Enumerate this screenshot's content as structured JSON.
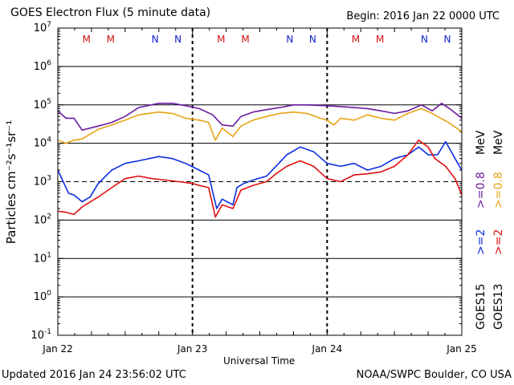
{
  "header": {
    "title": "GOES Electron Flux (5 minute data)",
    "begin": "Begin: 2016 Jan 22 0000 UTC"
  },
  "footer": {
    "updated": "Updated 2016 Jan 24 23:56:02 UTC",
    "credit": "NOAA/SWPC Boulder, CO USA"
  },
  "colors": {
    "goes13_08": "#e8a317",
    "goes15_08": "#6a1aa0",
    "goes13_2": "#e01010",
    "goes15_2": "#0a2ee0",
    "marker_m": "#d01010",
    "marker_n": "#1020d0"
  },
  "chart_data": {
    "type": "line",
    "title": "GOES Electron Flux (5 minute data)",
    "xlabel": "Universal Time",
    "ylabel": "Particles cm⁻²s⁻¹sr⁻¹",
    "y_scale": "log",
    "ylim": [
      0.1,
      10000000
    ],
    "xlim_days": [
      0,
      3
    ],
    "x_tick_labels": [
      "Jan 22",
      "Jan 23",
      "Jan 24",
      "Jan 25"
    ],
    "y_ticks": [
      {
        "base": "10",
        "exp": "-1"
      },
      {
        "base": "10",
        "exp": "0"
      },
      {
        "base": "10",
        "exp": "1"
      },
      {
        "base": "10",
        "exp": "2"
      },
      {
        "base": "10",
        "exp": "3"
      },
      {
        "base": "10",
        "exp": "4"
      },
      {
        "base": "10",
        "exp": "5"
      },
      {
        "base": "10",
        "exp": "6"
      },
      {
        "base": "10",
        "exp": "7"
      }
    ],
    "threshold_lines": [
      1000
    ],
    "grid": "horizontal solid at decades; dashed vertical day separators",
    "right_legend": {
      "goes15": "GOES15",
      "goes13": "GOES13",
      "ge2": ">=2",
      "ge08": ">=0.8",
      "unit": "MeV"
    },
    "markers": [
      {
        "label": "M",
        "day": 0.32
      },
      {
        "label": "M",
        "day": 0.5
      },
      {
        "label": "N",
        "day": 0.83
      },
      {
        "label": "N",
        "day": 1.0
      },
      {
        "label": "M",
        "day": 1.32
      },
      {
        "label": "M",
        "day": 1.5
      },
      {
        "label": "N",
        "day": 1.83
      },
      {
        "label": "N",
        "day": 2.0
      },
      {
        "label": "M",
        "day": 2.32
      },
      {
        "label": "M",
        "day": 2.5
      },
      {
        "label": "N",
        "day": 2.83
      },
      {
        "label": "N",
        "day": 3.0
      }
    ],
    "series": [
      {
        "name": "GOES15 >=0.8 MeV",
        "color": "#6a1aa0",
        "points": [
          [
            0.0,
            70000
          ],
          [
            0.06,
            45000
          ],
          [
            0.12,
            45000
          ],
          [
            0.18,
            22000
          ],
          [
            0.3,
            28000
          ],
          [
            0.4,
            35000
          ],
          [
            0.5,
            50000
          ],
          [
            0.6,
            85000
          ],
          [
            0.75,
            110000
          ],
          [
            0.85,
            110000
          ],
          [
            0.95,
            95000
          ],
          [
            1.05,
            80000
          ],
          [
            1.15,
            55000
          ],
          [
            1.22,
            30000
          ],
          [
            1.3,
            28000
          ],
          [
            1.36,
            50000
          ],
          [
            1.45,
            65000
          ],
          [
            1.55,
            75000
          ],
          [
            1.65,
            85000
          ],
          [
            1.75,
            100000
          ],
          [
            1.85,
            100000
          ],
          [
            2.0,
            95000
          ],
          [
            2.1,
            90000
          ],
          [
            2.2,
            85000
          ],
          [
            2.3,
            80000
          ],
          [
            2.4,
            70000
          ],
          [
            2.5,
            60000
          ],
          [
            2.6,
            70000
          ],
          [
            2.7,
            100000
          ],
          [
            2.78,
            70000
          ],
          [
            2.85,
            110000
          ],
          [
            2.92,
            75000
          ],
          [
            3.0,
            45000
          ]
        ]
      },
      {
        "name": "GOES13 >=0.8 MeV",
        "color": "#e8a317",
        "points": [
          [
            0.0,
            12000
          ],
          [
            0.06,
            10000
          ],
          [
            0.12,
            12000
          ],
          [
            0.18,
            13000
          ],
          [
            0.3,
            23000
          ],
          [
            0.4,
            30000
          ],
          [
            0.5,
            40000
          ],
          [
            0.6,
            55000
          ],
          [
            0.75,
            65000
          ],
          [
            0.85,
            60000
          ],
          [
            0.95,
            45000
          ],
          [
            1.05,
            40000
          ],
          [
            1.12,
            35000
          ],
          [
            1.17,
            12000
          ],
          [
            1.22,
            25000
          ],
          [
            1.3,
            15000
          ],
          [
            1.36,
            28000
          ],
          [
            1.45,
            40000
          ],
          [
            1.55,
            50000
          ],
          [
            1.65,
            60000
          ],
          [
            1.75,
            65000
          ],
          [
            1.85,
            60000
          ],
          [
            1.95,
            45000
          ],
          [
            2.0,
            40000
          ],
          [
            2.05,
            30000
          ],
          [
            2.1,
            45000
          ],
          [
            2.2,
            40000
          ],
          [
            2.3,
            55000
          ],
          [
            2.4,
            45000
          ],
          [
            2.5,
            40000
          ],
          [
            2.6,
            60000
          ],
          [
            2.7,
            80000
          ],
          [
            2.78,
            60000
          ],
          [
            2.82,
            50000
          ],
          [
            2.9,
            35000
          ],
          [
            3.0,
            20000
          ]
        ]
      },
      {
        "name": "GOES15 >=2 MeV",
        "color": "#0a2ee0",
        "points": [
          [
            0.0,
            2000
          ],
          [
            0.04,
            1000
          ],
          [
            0.08,
            500
          ],
          [
            0.12,
            450
          ],
          [
            0.18,
            300
          ],
          [
            0.24,
            400
          ],
          [
            0.3,
            900
          ],
          [
            0.4,
            2000
          ],
          [
            0.5,
            3000
          ],
          [
            0.6,
            3500
          ],
          [
            0.75,
            4500
          ],
          [
            0.85,
            4000
          ],
          [
            0.95,
            3000
          ],
          [
            1.05,
            2000
          ],
          [
            1.12,
            1500
          ],
          [
            1.18,
            200
          ],
          [
            1.22,
            350
          ],
          [
            1.3,
            250
          ],
          [
            1.33,
            700
          ],
          [
            1.38,
            900
          ],
          [
            1.45,
            1100
          ],
          [
            1.55,
            1400
          ],
          [
            1.62,
            2500
          ],
          [
            1.7,
            5000
          ],
          [
            1.8,
            8000
          ],
          [
            1.9,
            6000
          ],
          [
            2.0,
            3000
          ],
          [
            2.1,
            2500
          ],
          [
            2.2,
            3000
          ],
          [
            2.3,
            2000
          ],
          [
            2.4,
            2500
          ],
          [
            2.5,
            4000
          ],
          [
            2.6,
            5000
          ],
          [
            2.68,
            8000
          ],
          [
            2.75,
            5000
          ],
          [
            2.82,
            5000
          ],
          [
            2.88,
            11000
          ],
          [
            2.95,
            4000
          ],
          [
            3.0,
            2000
          ]
        ]
      },
      {
        "name": "GOES13 >=2 MeV",
        "color": "#e01010",
        "points": [
          [
            0.0,
            170
          ],
          [
            0.06,
            160
          ],
          [
            0.12,
            140
          ],
          [
            0.18,
            220
          ],
          [
            0.3,
            400
          ],
          [
            0.4,
            700
          ],
          [
            0.5,
            1200
          ],
          [
            0.6,
            1400
          ],
          [
            0.7,
            1200
          ],
          [
            0.8,
            1100
          ],
          [
            0.9,
            1000
          ],
          [
            1.0,
            900
          ],
          [
            1.05,
            800
          ],
          [
            1.12,
            700
          ],
          [
            1.17,
            120
          ],
          [
            1.22,
            250
          ],
          [
            1.3,
            200
          ],
          [
            1.36,
            600
          ],
          [
            1.45,
            800
          ],
          [
            1.55,
            1000
          ],
          [
            1.62,
            1600
          ],
          [
            1.7,
            2500
          ],
          [
            1.8,
            3500
          ],
          [
            1.9,
            2500
          ],
          [
            2.0,
            1200
          ],
          [
            2.1,
            1000
          ],
          [
            2.2,
            1500
          ],
          [
            2.3,
            1600
          ],
          [
            2.4,
            1800
          ],
          [
            2.5,
            2500
          ],
          [
            2.6,
            5000
          ],
          [
            2.68,
            12000
          ],
          [
            2.75,
            8000
          ],
          [
            2.8,
            4000
          ],
          [
            2.88,
            2500
          ],
          [
            2.95,
            1200
          ],
          [
            3.0,
            450
          ]
        ]
      }
    ]
  }
}
